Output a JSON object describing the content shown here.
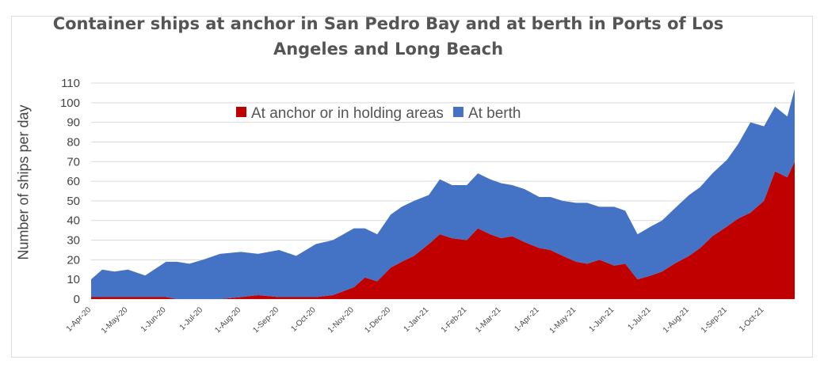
{
  "chart_data": {
    "type": "area",
    "stacked": true,
    "title": "Container ships at anchor in San Pedro Bay and at berth in Ports of Los Angeles and Long Beach",
    "ylabel": "Number of ships per day",
    "xlabel": "",
    "ylim": [
      0,
      110
    ],
    "yticks": [
      0,
      10,
      20,
      30,
      40,
      50,
      60,
      70,
      80,
      90,
      100,
      110
    ],
    "xticks": [
      "1-Apr-20",
      "1-May-20",
      "1-Jun-20",
      "1-Jul-20",
      "1-Aug-20",
      "1-Sep-20",
      "1-Oct-20",
      "1-Nov-20",
      "1-Dec-20",
      "1-Jan-21",
      "1-Feb-21",
      "1-Mar-21",
      "1-Apr-21",
      "1-May-21",
      "1-Jun-21",
      "1-Jul-21",
      "1-Aug-21",
      "1-Sep-21",
      "1-Oct-21"
    ],
    "grid": true,
    "legend_position": "top-center",
    "x": [
      "2020-04-01",
      "2020-04-10",
      "2020-04-20",
      "2020-05-01",
      "2020-05-15",
      "2020-06-01",
      "2020-06-10",
      "2020-06-20",
      "2020-07-01",
      "2020-07-15",
      "2020-08-01",
      "2020-08-15",
      "2020-09-01",
      "2020-09-15",
      "2020-10-01",
      "2020-10-15",
      "2020-11-01",
      "2020-11-10",
      "2020-11-20",
      "2020-12-01",
      "2020-12-10",
      "2020-12-20",
      "2021-01-01",
      "2021-01-10",
      "2021-01-20",
      "2021-02-01",
      "2021-02-10",
      "2021-02-20",
      "2021-03-01",
      "2021-03-10",
      "2021-03-20",
      "2021-04-01",
      "2021-04-10",
      "2021-04-20",
      "2021-05-01",
      "2021-05-10",
      "2021-05-20",
      "2021-06-01",
      "2021-06-10",
      "2021-06-20",
      "2021-07-01",
      "2021-07-10",
      "2021-07-20",
      "2021-08-01",
      "2021-08-10",
      "2021-08-20",
      "2021-09-01",
      "2021-09-10",
      "2021-09-20",
      "2021-10-01",
      "2021-10-10",
      "2021-10-20",
      "2021-10-26"
    ],
    "series": [
      {
        "name": "At anchor or in holding areas",
        "color": "#c00000",
        "values": [
          1,
          1,
          1,
          1,
          1,
          1,
          0,
          0,
          0,
          0,
          1,
          2,
          1,
          1,
          1,
          2,
          6,
          11,
          9,
          16,
          19,
          22,
          28,
          33,
          31,
          30,
          36,
          33,
          31,
          32,
          29,
          26,
          25,
          22,
          19,
          18,
          20,
          17,
          18,
          10,
          12,
          14,
          18,
          22,
          26,
          32,
          37,
          41,
          44,
          50,
          65,
          62,
          70
        ]
      },
      {
        "name": "At berth",
        "color": "#4472c4",
        "values": [
          9,
          14,
          13,
          14,
          11,
          18,
          19,
          18,
          20,
          23,
          23,
          21,
          24,
          21,
          27,
          28,
          30,
          25,
          24,
          27,
          28,
          28,
          25,
          28,
          27,
          28,
          28,
          28,
          28,
          26,
          27,
          26,
          27,
          28,
          30,
          31,
          27,
          30,
          27,
          23,
          25,
          26,
          28,
          31,
          31,
          32,
          34,
          38,
          46,
          38,
          33,
          31,
          37
        ]
      }
    ]
  }
}
